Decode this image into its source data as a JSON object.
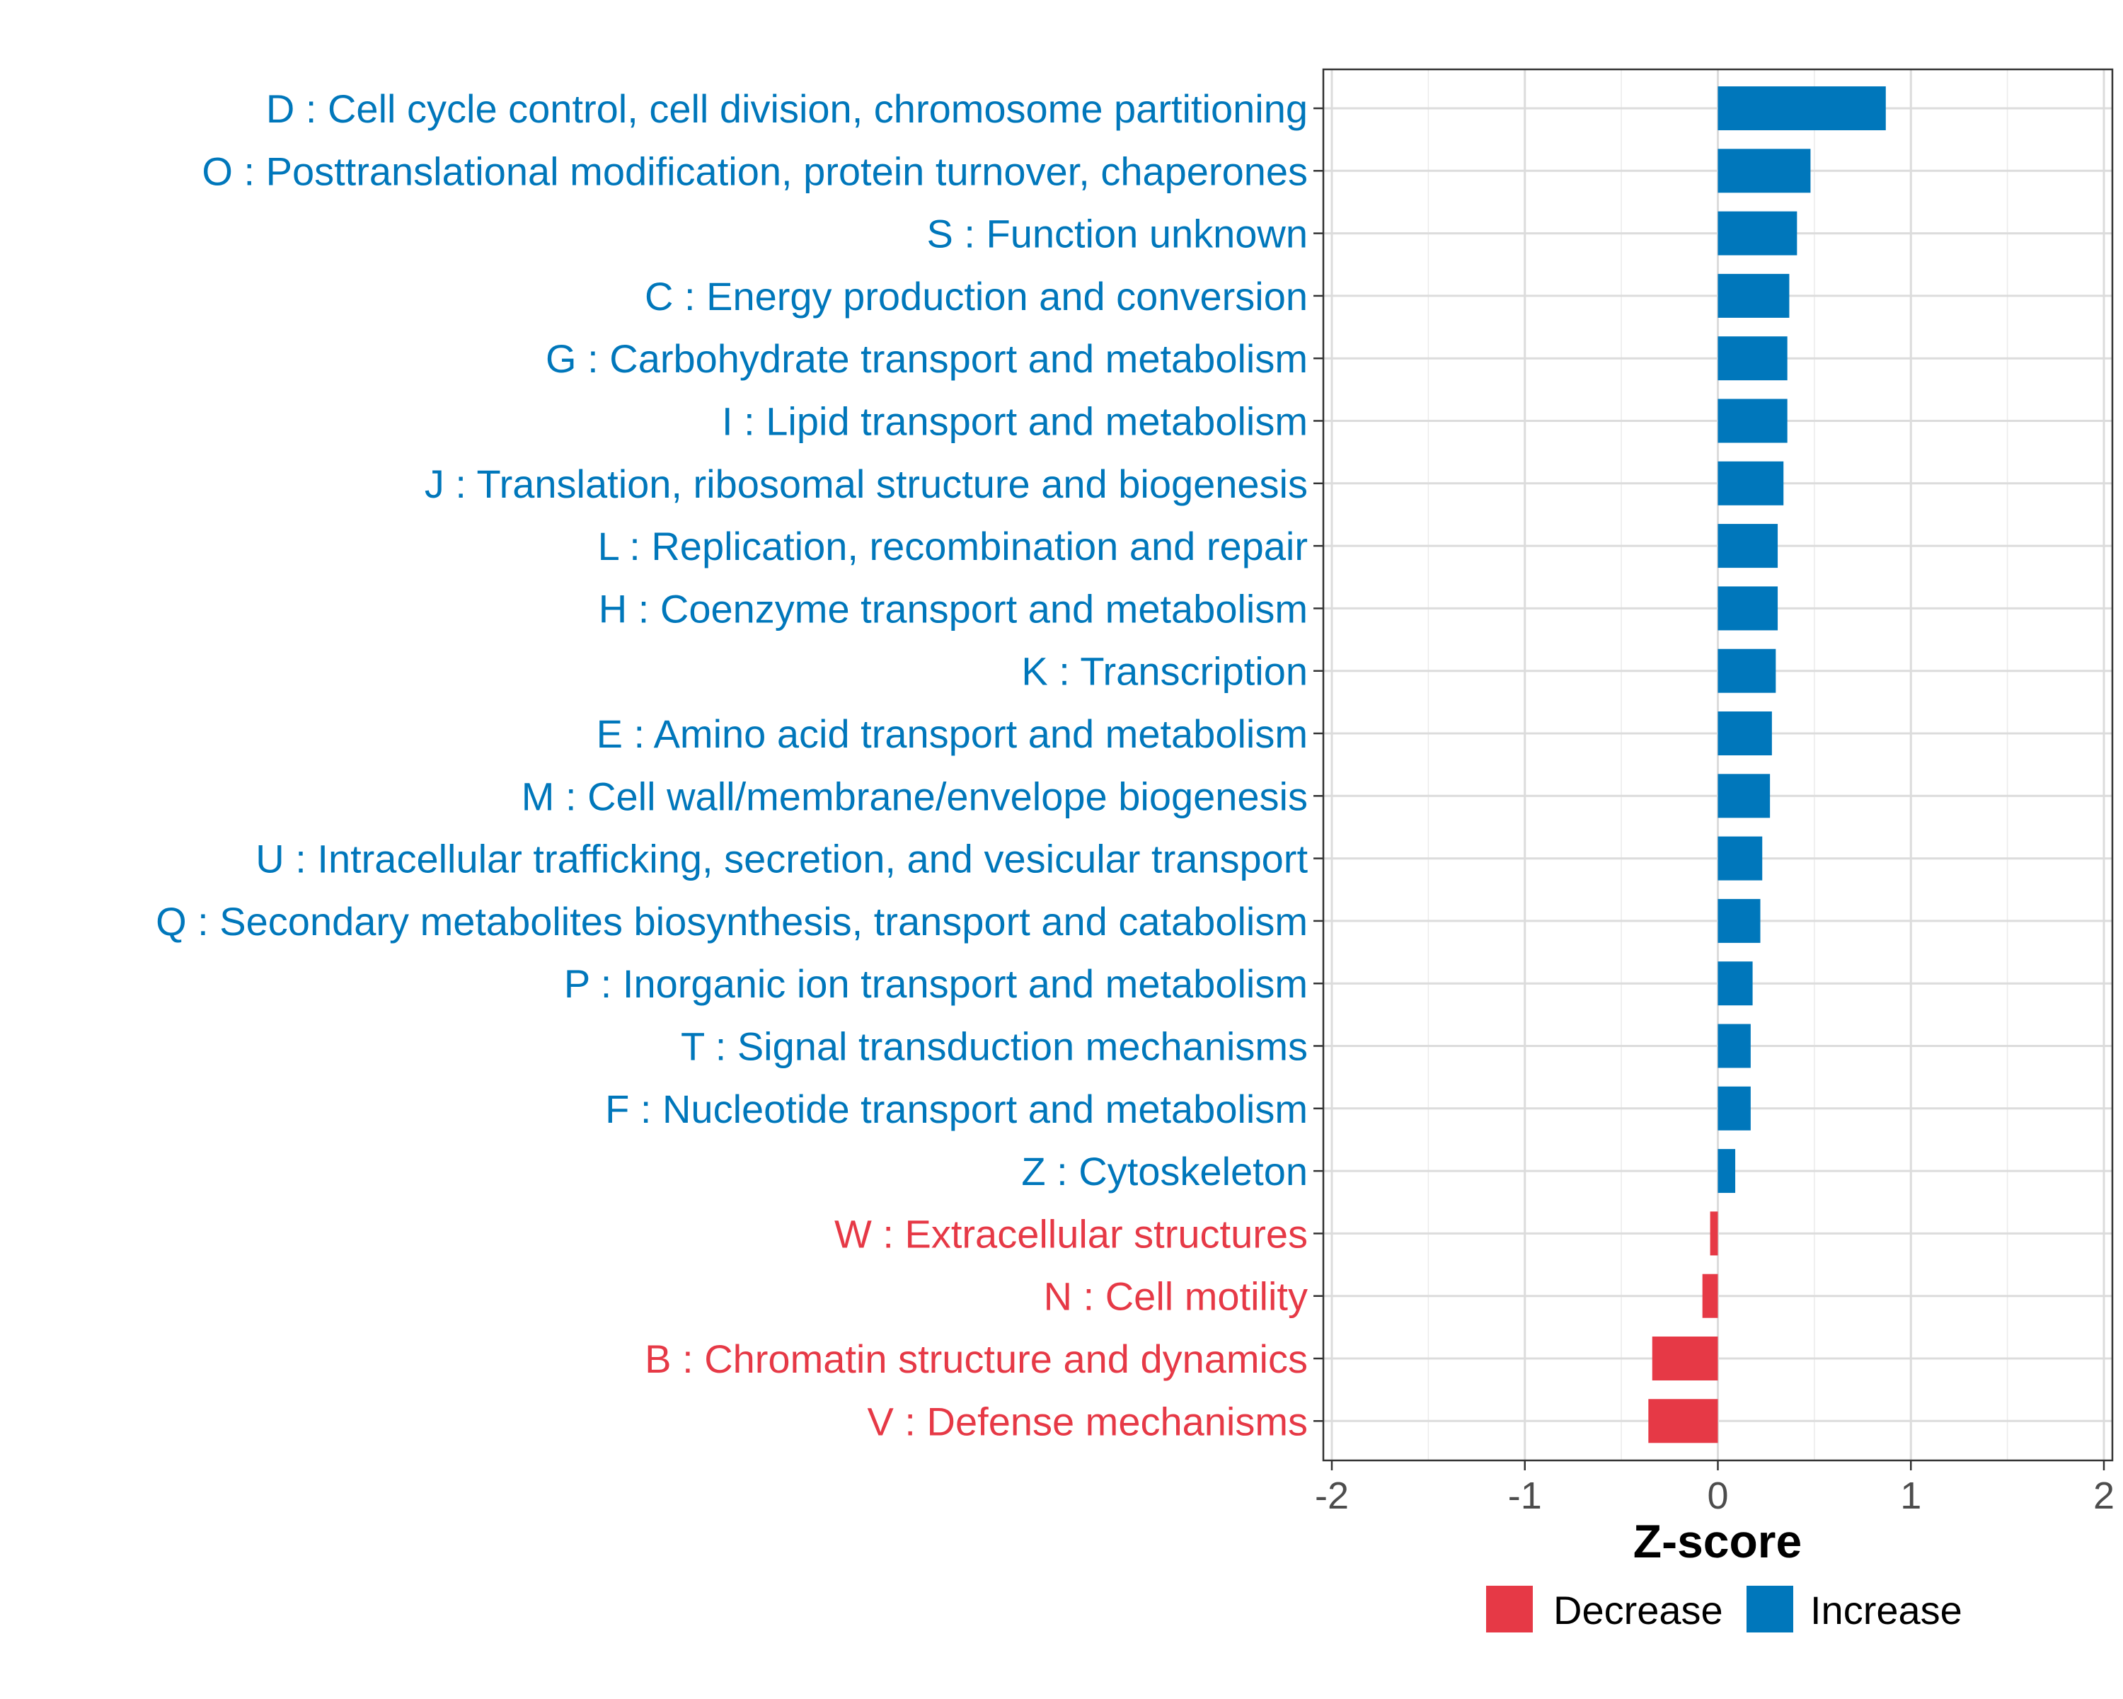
{
  "chart_data": {
    "type": "bar",
    "orientation": "horizontal",
    "title": "",
    "xlabel": "Z-score",
    "ylabel": "",
    "xlim": [
      -2,
      2
    ],
    "xticks": [
      -2,
      -1,
      0,
      1,
      2
    ],
    "xtick_labels": [
      "-2",
      "-1",
      "0",
      "1",
      "2"
    ],
    "grid": true,
    "legend_position": "bottom",
    "legend": [
      {
        "key": "decrease",
        "label": "Decrease",
        "color": "#E63946"
      },
      {
        "key": "increase",
        "label": "Increase",
        "color": "#0077BB"
      }
    ],
    "categories": [
      "D : Cell cycle control, cell division, chromosome partitioning",
      "O : Posttranslational modification, protein turnover, chaperones",
      "S : Function unknown",
      "C : Energy production and conversion",
      "G : Carbohydrate transport and metabolism",
      "I : Lipid transport and metabolism",
      "J : Translation, ribosomal structure and biogenesis",
      "L : Replication, recombination and repair",
      "H : Coenzyme transport and metabolism",
      "K : Transcription",
      "E : Amino acid transport and metabolism",
      "M : Cell wall/membrane/envelope biogenesis",
      "U : Intracellular trafficking, secretion, and vesicular transport",
      "Q : Secondary metabolites biosynthesis, transport and catabolism",
      "P : Inorganic ion transport and metabolism",
      "T : Signal transduction mechanisms",
      "F : Nucleotide transport and metabolism",
      "Z : Cytoskeleton",
      "W : Extracellular structures",
      "N : Cell motility",
      "B : Chromatin structure and dynamics",
      "V : Defense mechanisms"
    ],
    "values": [
      0.87,
      0.48,
      0.41,
      0.37,
      0.36,
      0.36,
      0.34,
      0.31,
      0.31,
      0.3,
      0.28,
      0.27,
      0.23,
      0.22,
      0.18,
      0.17,
      0.17,
      0.09,
      -0.04,
      -0.08,
      -0.34,
      -0.36
    ],
    "groups": [
      "increase",
      "increase",
      "increase",
      "increase",
      "increase",
      "increase",
      "increase",
      "increase",
      "increase",
      "increase",
      "increase",
      "increase",
      "increase",
      "increase",
      "increase",
      "increase",
      "increase",
      "increase",
      "decrease",
      "decrease",
      "decrease",
      "decrease"
    ]
  }
}
